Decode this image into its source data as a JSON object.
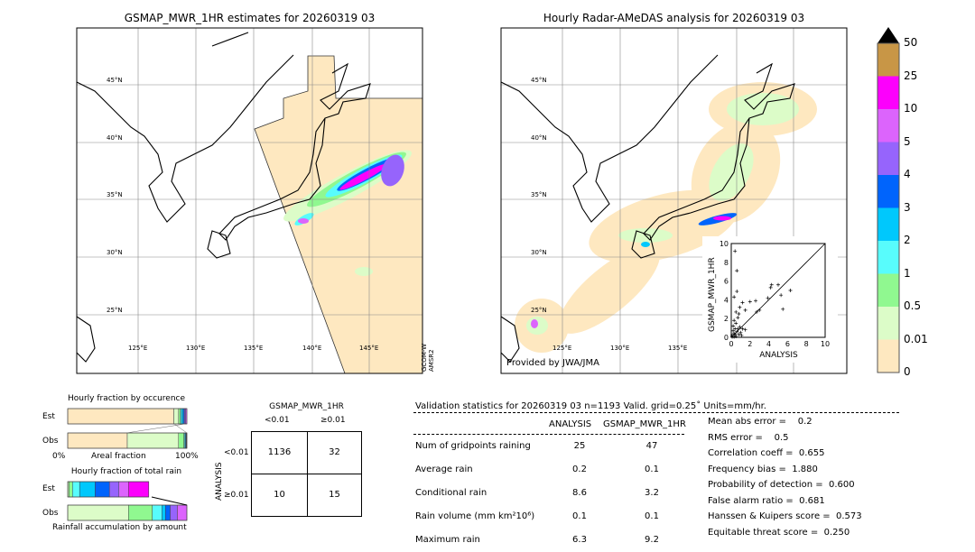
{
  "left_map": {
    "title": "GSMAP_MWR_1HR estimates for 20260319 03",
    "lat_labels": [
      "45°N",
      "40°N",
      "35°N",
      "30°N",
      "25°N"
    ],
    "lon_labels": [
      "125°E",
      "130°E",
      "135°E",
      "140°E",
      "145°E"
    ],
    "sensor_note": "GCOM-W\nAMSR2"
  },
  "right_map": {
    "title": "Hourly Radar-AMeDAS analysis for 20260319 03",
    "lat_labels": [
      "45°N",
      "40°N",
      "35°N",
      "30°N",
      "25°N"
    ],
    "lon_labels": [
      "125°E",
      "130°E",
      "135°E"
    ],
    "credit": "Provided by JWA/JMA"
  },
  "colorbar": {
    "labels": [
      "0",
      "0.01",
      "0.5",
      "1",
      "2",
      "3",
      "4",
      "5",
      "10",
      "25",
      "50"
    ],
    "colors": [
      "#fee8c0",
      "#dcfcc8",
      "#90f890",
      "#58fcfc",
      "#00c8fc",
      "#0064fc",
      "#9664fc",
      "#dc64fc",
      "#fc00fc",
      "#c89646"
    ],
    "extend_color": "#000000"
  },
  "chart_data": [
    {
      "type": "scatter",
      "xlabel": "ANALYSIS",
      "ylabel": "GSMAP_MWR_1HR",
      "xlim": [
        0,
        10
      ],
      "ylim": [
        0,
        10
      ],
      "x_ticks": [
        "0",
        "2",
        "4",
        "6",
        "8",
        "10"
      ],
      "y_ticks": [
        "0",
        "2",
        "4",
        "6",
        "8",
        "10"
      ],
      "diagonal": true,
      "points": [
        [
          0.4,
          9.2
        ],
        [
          0.6,
          7.1
        ],
        [
          0.6,
          4.9
        ],
        [
          0.3,
          4.3
        ],
        [
          0.9,
          3.2
        ],
        [
          1.2,
          3.7
        ],
        [
          2,
          3.8
        ],
        [
          2.6,
          3.9
        ],
        [
          3.9,
          4.2
        ],
        [
          4.2,
          5.3
        ],
        [
          4.3,
          5.6
        ],
        [
          5,
          5.6
        ],
        [
          6.3,
          5
        ],
        [
          5.3,
          4.5
        ],
        [
          5.5,
          3
        ],
        [
          3,
          2.9
        ],
        [
          2.7,
          2.7
        ],
        [
          1.5,
          2.9
        ],
        [
          0.8,
          2.5
        ],
        [
          0.5,
          2.7
        ],
        [
          0.7,
          2.1
        ],
        [
          0.3,
          1.8
        ],
        [
          0.5,
          1.5
        ],
        [
          0.9,
          1.1
        ],
        [
          1.2,
          0.9
        ],
        [
          1.5,
          0.8
        ],
        [
          0.2,
          1.2
        ],
        [
          0.4,
          0.9
        ],
        [
          0.6,
          0.6
        ],
        [
          0.3,
          0.4
        ],
        [
          0.1,
          0.2
        ],
        [
          0.5,
          0.1
        ],
        [
          0.8,
          0.3
        ],
        [
          1,
          0.5
        ],
        [
          0.2,
          0.7
        ],
        [
          0.4,
          0.3
        ],
        [
          0.7,
          0.9
        ],
        [
          0.1,
          0.05
        ],
        [
          0.3,
          0.05
        ],
        [
          1.1,
          0.2
        ]
      ]
    },
    {
      "type": "bar",
      "title": "Hourly fraction by occurence",
      "xlabel": "Areal fraction",
      "x_ticks": [
        "0%",
        "100%"
      ],
      "categories": [
        "Est",
        "Obs"
      ],
      "stacked_fractions": [
        [
          0.89,
          0.04,
          0.015,
          0.01,
          0.015,
          0.01,
          0.01,
          0.01
        ],
        [
          0.5,
          0.43,
          0.045,
          0.008,
          0.006,
          0.005,
          0.003,
          0.003
        ]
      ]
    },
    {
      "type": "bar",
      "title": "Hourly fraction of total rain",
      "xlabel": "Rainfall accumulation by amount",
      "categories": [
        "Est",
        "Obs"
      ],
      "stacked_fractions": [
        [
          0.01,
          0.03,
          0.06,
          0.13,
          0.12,
          0.08,
          0.08,
          0.17
        ],
        [
          0.51,
          0.2,
          0.08,
          0.03,
          0.04,
          0.06,
          0.08
        ]
      ]
    }
  ],
  "contingency": {
    "title": "GSMAP_MWR_1HR",
    "col_labels": [
      "<0.01",
      "≥0.01"
    ],
    "row_axis": "ANALYSIS",
    "row_labels": [
      "<0.01",
      "≥0.01"
    ],
    "cells": [
      [
        "1136",
        "32"
      ],
      [
        "10",
        "15"
      ]
    ]
  },
  "stats": {
    "header": "Validation statistics for 20260319 03  n=1193 Valid. grid=0.25˚ Units=mm/hr.",
    "col_headers": [
      "ANALYSIS",
      "GSMAP_MWR_1HR"
    ],
    "rows": [
      {
        "label": "Num of gridpoints raining",
        "a": "25",
        "b": "47"
      },
      {
        "label": "Average rain",
        "a": "0.2",
        "b": "0.1"
      },
      {
        "label": "Conditional rain",
        "a": "8.6",
        "b": "3.2"
      },
      {
        "label": "Rain volume (mm km²10⁶)",
        "a": "0.1",
        "b": "0.1"
      },
      {
        "label": "Maximum rain",
        "a": "6.3",
        "b": "9.2"
      }
    ],
    "scores": [
      "Mean abs error =    0.2",
      "RMS error =    0.5",
      "Correlation coeff =  0.655",
      "Frequency bias =  1.880",
      "Probability of detection =  0.600",
      "False alarm ratio =  0.681",
      "Hanssen & Kuipers score =  0.573",
      "Equitable threat score =  0.250"
    ]
  }
}
